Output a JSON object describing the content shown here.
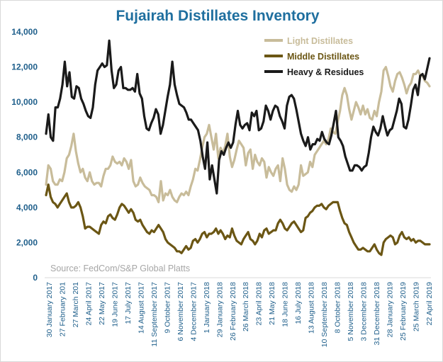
{
  "chart_data": {
    "type": "line",
    "title": "Fujairah Distillates Inventory",
    "source": "Source: FedCom/S&P Global Platts",
    "xlabel": "",
    "ylabel": "",
    "ylim": [
      0,
      14000
    ],
    "yticks": [
      "0",
      "2,000",
      "4,000",
      "6,000",
      "8,000",
      "10,000",
      "12,000",
      "14,000"
    ],
    "xticks": [
      "30 January 2017",
      "27 February 201",
      "27 March 201",
      "24 April 2017",
      "22 May 2017",
      "19 June 2017",
      "17 July 2017",
      "14 August 2017",
      "11 September 2017",
      "9 October 2017",
      "6 November 2017",
      "4 December 2017",
      "1 January 2018",
      "29 January 2018",
      "26 February 2018",
      "26 March 2018",
      "23 April 2018",
      "21 May 2018",
      "18 June 2018",
      "16 July 2018",
      "13 August 2018",
      "10 September 2018",
      "8 October 2018",
      "5 November 2018",
      "3 December 2018",
      "31 December 2018",
      "28 January 2019",
      "25 February 2019",
      "25 March 2019",
      "22 April 2019"
    ],
    "series": [
      {
        "name": "Light Distillates",
        "color": "#c8bc9a",
        "values": [
          5300,
          6400,
          6200,
          5500,
          5300,
          5300,
          5600,
          5500,
          6000,
          6800,
          7000,
          7500,
          8200,
          7200,
          6500,
          6000,
          6200,
          5700,
          5500,
          6000,
          5500,
          5300,
          5400,
          5400,
          5200,
          5800,
          6200,
          6200,
          6400,
          6900,
          6600,
          6500,
          6600,
          6400,
          6800,
          6600,
          6200,
          6700,
          5500,
          5200,
          5300,
          5700,
          5400,
          5200,
          5100,
          5000,
          4700,
          4700,
          4600,
          4300,
          5500,
          4400,
          4800,
          4700,
          5000,
          4600,
          4400,
          4300,
          4600,
          4800,
          4700,
          4900,
          4700,
          5200,
          5600,
          6200,
          6100,
          6700,
          7400,
          8000,
          8200,
          8700,
          8000,
          7300,
          8200,
          6800,
          7400,
          7100,
          7500,
          8200,
          6900,
          6300,
          6700,
          7300,
          7800,
          7600,
          7400,
          6400,
          7100,
          7300,
          6200,
          7000,
          6600,
          6400,
          6800,
          6600,
          5700,
          6300,
          6000,
          5800,
          6200,
          6400,
          5500,
          6800,
          6200,
          5300,
          5000,
          4900,
          5200,
          5000,
          5300,
          6400,
          5800,
          5900,
          6000,
          6600,
          6300,
          7000,
          7200,
          7400,
          7600,
          7800,
          7600,
          7900,
          8500,
          8300,
          8200,
          8900,
          9500,
          10400,
          10800,
          10400,
          9600,
          9000,
          9500,
          10000,
          9700,
          9300,
          9800,
          9300,
          9600,
          9100,
          9000,
          9500,
          9200,
          10000,
          10600,
          11800,
          12000,
          11500,
          10900,
          10600,
          11200,
          11600,
          11700,
          11400,
          11000,
          10500,
          10900,
          11100,
          11600,
          11600,
          11800,
          11500,
          11500,
          11200,
          11100,
          10900
        ]
      },
      {
        "name": "Middle Distillates",
        "color": "#6b5614",
        "values": [
          4700,
          5300,
          4600,
          4300,
          4200,
          4000,
          4200,
          4400,
          4600,
          4800,
          4300,
          4000,
          4000,
          4100,
          4300,
          4000,
          3500,
          2800,
          2900,
          2900,
          2800,
          2700,
          2600,
          2500,
          3000,
          3200,
          3100,
          3500,
          3600,
          3400,
          3300,
          3600,
          4000,
          4200,
          4100,
          3900,
          3700,
          3900,
          3700,
          3300,
          3200,
          3300,
          3000,
          2800,
          2600,
          2500,
          2700,
          2600,
          2800,
          3000,
          2800,
          2600,
          2200,
          2000,
          1900,
          1800,
          1700,
          1500,
          1500,
          1400,
          1600,
          1800,
          1600,
          1700,
          2100,
          2200,
          2000,
          2200,
          2500,
          2600,
          2300,
          2500,
          2500,
          2600,
          2800,
          2500,
          2700,
          2500,
          2200,
          2400,
          2300,
          2800,
          2400,
          2100,
          2000,
          1900,
          2200,
          2400,
          2600,
          2200,
          2100,
          1900,
          2100,
          2500,
          2300,
          2700,
          2800,
          2500,
          2600,
          2700,
          2700,
          3100,
          3300,
          3100,
          2800,
          2700,
          2900,
          3100,
          3200,
          3000,
          2800,
          2600,
          2700,
          3400,
          3500,
          3700,
          3800,
          4000,
          4100,
          4100,
          4200,
          4000,
          3900,
          4100,
          4200,
          4300,
          4300,
          4300,
          3800,
          3400,
          3100,
          3000,
          2600,
          2300,
          2000,
          1800,
          1600,
          1600,
          1700,
          1600,
          1500,
          1500,
          1700,
          1900,
          1600,
          1400,
          1300,
          2000,
          2200,
          2300,
          2400,
          2300,
          1900,
          2000,
          2400,
          2600,
          2300,
          2200,
          2300,
          2100,
          2200,
          2000,
          2100,
          2100,
          2000,
          1900,
          1900,
          1900
        ]
      },
      {
        "name": "Heavy & Residues",
        "color": "#1a1a1a",
        "values": [
          8200,
          9300,
          8000,
          7800,
          9700,
          9700,
          10200,
          11000,
          12300,
          10900,
          11700,
          10300,
          10200,
          10900,
          10800,
          10200,
          9900,
          9500,
          9200,
          9100,
          9700,
          11000,
          11800,
          12000,
          12200,
          12000,
          12100,
          13500,
          11800,
          10800,
          11000,
          11800,
          12000,
          10800,
          10800,
          10700,
          10700,
          10800,
          10600,
          11600,
          10500,
          10200,
          9200,
          8500,
          8400,
          8800,
          9100,
          9600,
          9300,
          8200,
          8700,
          9500,
          10300,
          11000,
          12300,
          11000,
          10400,
          9900,
          9800,
          9700,
          9400,
          9000,
          9000,
          8800,
          8600,
          8400,
          7800,
          6900,
          6200,
          7700,
          5600,
          6400,
          5600,
          4800,
          6700,
          7200,
          7000,
          7400,
          7700,
          7400,
          7700,
          8700,
          9500,
          8700,
          8500,
          8700,
          8800,
          8400,
          9400,
          9200,
          9500,
          8400,
          8500,
          8900,
          9800,
          9500,
          9000,
          9500,
          9800,
          9700,
          9200,
          8900,
          8500,
          9800,
          10300,
          10400,
          10200,
          9600,
          8900,
          8200,
          7800,
          7500,
          8000,
          7300,
          7600,
          7600,
          7900,
          7800,
          8300,
          7900,
          7700,
          7600,
          8100,
          8800,
          9500,
          8000,
          7800,
          7500,
          6900,
          6500,
          6100,
          6100,
          6400,
          6400,
          6300,
          6100,
          6300,
          6400,
          7100,
          8000,
          8600,
          8300,
          8100,
          8500,
          9200,
          8600,
          8100,
          8400,
          8500,
          9000,
          9500,
          10200,
          9900,
          8600,
          8500,
          9000,
          9800,
          10700,
          11000,
          10400,
          11500,
          11600,
          11300,
          11900,
          12500
        ]
      }
    ]
  }
}
